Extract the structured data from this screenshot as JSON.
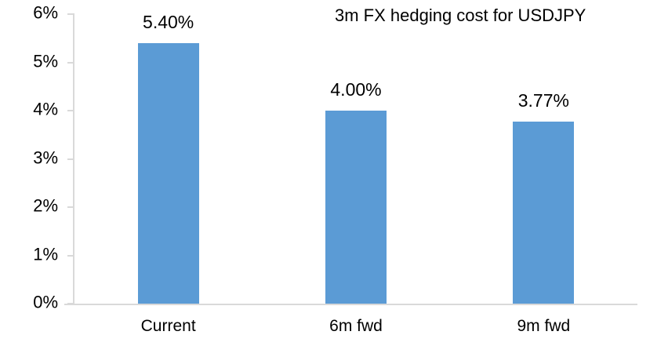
{
  "chart_data": {
    "type": "bar",
    "title": "3m FX hedging cost for USDJPY",
    "categories": [
      "Current",
      "6m fwd",
      "9m fwd"
    ],
    "values": [
      5.4,
      4.0,
      3.77
    ],
    "data_labels": [
      "5.40%",
      "4.00%",
      "3.77%"
    ],
    "ylabel": "",
    "xlabel": "",
    "ylim": [
      0,
      6
    ],
    "ytick_step": 1,
    "ytick_labels": [
      "0%",
      "1%",
      "2%",
      "3%",
      "4%",
      "5%",
      "6%"
    ],
    "grid": false,
    "legend": "none",
    "colors": {
      "bar": "#5B9BD5",
      "axis": "#D9D9D9",
      "text": "#000000",
      "background": "#FFFFFF"
    }
  }
}
